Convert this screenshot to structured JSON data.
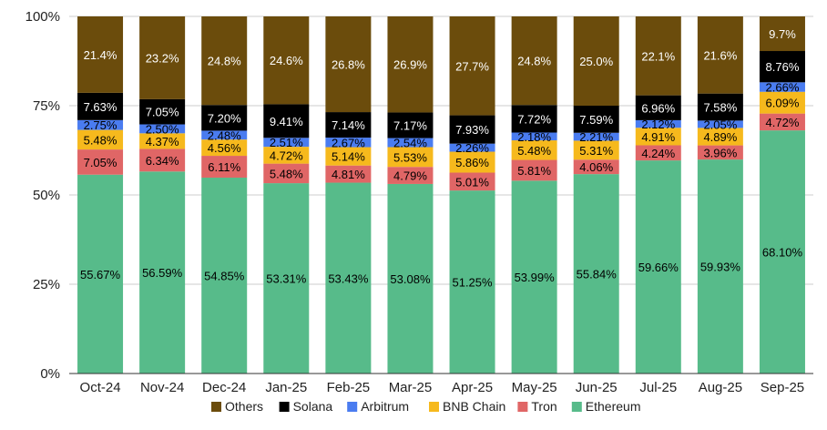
{
  "chart_data": {
    "type": "bar",
    "stacked": true,
    "categories": [
      "Oct-24",
      "Nov-24",
      "Dec-24",
      "Jan-25",
      "Feb-25",
      "Mar-25",
      "Apr-25",
      "May-25",
      "Jun-25",
      "Jul-25",
      "Aug-25",
      "Sep-25"
    ],
    "series": [
      {
        "name": "Ethereum",
        "color": "#57bb8a",
        "values": [
          55.67,
          56.59,
          54.85,
          53.31,
          53.43,
          53.08,
          51.25,
          53.99,
          55.84,
          59.66,
          59.93,
          68.1
        ],
        "labels": [
          "55.67%",
          "56.59%",
          "54.85%",
          "53.31%",
          "53.43%",
          "53.08%",
          "51.25%",
          "53.99%",
          "55.84%",
          "59.66%",
          "59.93%",
          "68.10%"
        ]
      },
      {
        "name": "Tron",
        "color": "#e06666",
        "values": [
          7.05,
          6.34,
          6.11,
          5.48,
          4.81,
          4.79,
          5.01,
          5.81,
          4.06,
          4.24,
          3.96,
          4.72
        ],
        "labels": [
          "7.05%",
          "6.34%",
          "6.11%",
          "5.48%",
          "4.81%",
          "4.79%",
          "5.01%",
          "5.81%",
          "4.06%",
          "4.24%",
          "3.96%",
          "4.72%"
        ]
      },
      {
        "name": "BNB Chain",
        "color": "#f6b91d",
        "values": [
          5.48,
          4.37,
          4.56,
          4.72,
          5.14,
          5.53,
          5.86,
          5.48,
          5.31,
          4.91,
          4.89,
          6.09
        ],
        "labels": [
          "5.48%",
          "4.37%",
          "4.56%",
          "4.72%",
          "5.14%",
          "5.53%",
          "5.86%",
          "5.48%",
          "5.31%",
          "4.91%",
          "4.89%",
          "6.09%"
        ]
      },
      {
        "name": "Arbitrum",
        "color": "#4a7cf0",
        "values": [
          2.75,
          2.5,
          2.48,
          2.51,
          2.67,
          2.54,
          2.26,
          2.18,
          2.21,
          2.12,
          2.05,
          2.66
        ],
        "labels": [
          "2.75%",
          "2.50%",
          "2.48%",
          "2.51%",
          "2.67%",
          "2.54%",
          "2.26%",
          "2.18%",
          "2.21%",
          "2.12%",
          "2.05%",
          "2.66%"
        ]
      },
      {
        "name": "Solana",
        "color": "#000000",
        "values": [
          7.63,
          7.05,
          7.2,
          9.41,
          7.14,
          7.17,
          7.93,
          7.72,
          7.59,
          6.96,
          7.58,
          8.76
        ],
        "labels": [
          "7.63%",
          "7.05%",
          "7.20%",
          "9.41%",
          "7.14%",
          "7.17%",
          "7.93%",
          "7.72%",
          "7.59%",
          "6.96%",
          "7.58%",
          "8.76%"
        ]
      },
      {
        "name": "Others",
        "color": "#6b4c0c",
        "values": [
          21.4,
          23.2,
          24.8,
          24.6,
          26.8,
          26.9,
          27.7,
          24.8,
          25.0,
          22.1,
          21.6,
          9.7
        ],
        "labels": [
          "21.4%",
          "23.2%",
          "24.8%",
          "24.6%",
          "26.8%",
          "26.9%",
          "27.7%",
          "24.8%",
          "25.0%",
          "22.1%",
          "21.6%",
          "9.7%"
        ]
      }
    ],
    "legend_order": [
      "Others",
      "Solana",
      "Arbitrum",
      "BNB Chain",
      "Tron",
      "Ethereum"
    ],
    "y_ticks": [
      "0%",
      "25%",
      "50%",
      "75%",
      "100%"
    ],
    "y_tick_values": [
      0,
      25,
      50,
      75,
      100
    ],
    "ylim": [
      0,
      100
    ],
    "title": "",
    "xlabel": "",
    "ylabel": "",
    "legend_position": "bottom"
  }
}
